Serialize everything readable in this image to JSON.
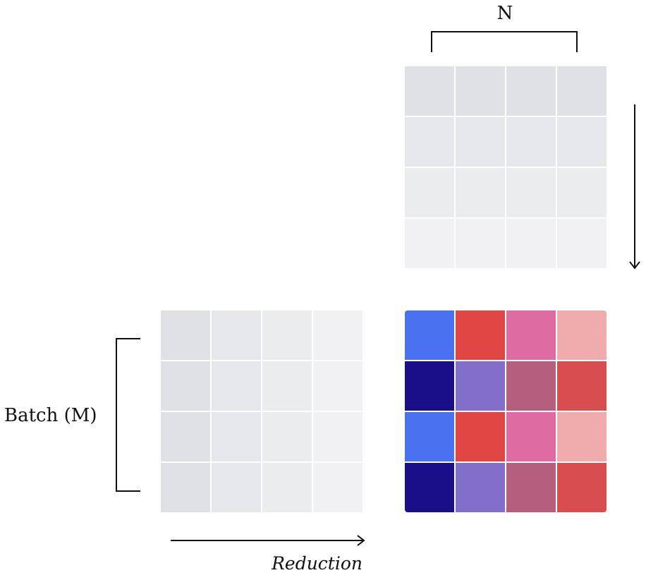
{
  "labels": {
    "n": "N",
    "batch": "Batch (M)",
    "reduction": "Reduction"
  },
  "matrices": {
    "weights": {
      "name": "weight-matrix",
      "rows": [
        [
          "#e0e1e4",
          "#e0e1e4",
          "#e0e1e4",
          "#e0e1e4"
        ],
        [
          "#e6e7ea",
          "#e6e7ea",
          "#e6e7ea",
          "#e6e7ea"
        ],
        [
          "#ebecee",
          "#ebecee",
          "#ebecee",
          "#ebecee"
        ],
        [
          "#f1f1f3",
          "#f1f1f3",
          "#f1f1f3",
          "#f1f1f3"
        ]
      ]
    },
    "inputs": {
      "name": "input-matrix",
      "rows": [
        [
          "#e0e1e4",
          "#e6e7ea",
          "#ebecee",
          "#f1f1f3"
        ],
        [
          "#e0e1e4",
          "#e6e7ea",
          "#ebecee",
          "#f1f1f3"
        ],
        [
          "#e0e1e4",
          "#e6e7ea",
          "#ebecee",
          "#f1f1f3"
        ],
        [
          "#e0e1e4",
          "#e6e7ea",
          "#ebecee",
          "#f1f1f3"
        ]
      ]
    },
    "output": {
      "name": "output-matrix",
      "rows": [
        [
          "#4a71f0",
          "#e04644",
          "#df6ba3",
          "#f0abac"
        ],
        [
          "#1a0f89",
          "#826fca",
          "#b65e7d",
          "#d84d4d"
        ],
        [
          "#4a71f0",
          "#e04644",
          "#df6ba3",
          "#f0abac"
        ],
        [
          "#1a0f89",
          "#826fca",
          "#b65e7d",
          "#d84d4d"
        ]
      ]
    }
  },
  "colors": {
    "stroke": "#111111",
    "gridline": "#ffffff"
  }
}
